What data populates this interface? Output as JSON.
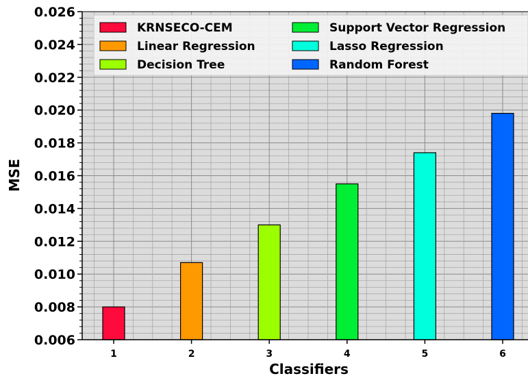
{
  "chart_data": {
    "type": "bar",
    "title": "",
    "xlabel": "Classifiers",
    "ylabel": "MSE",
    "categories": [
      "1",
      "2",
      "3",
      "4",
      "5",
      "6"
    ],
    "series": [
      {
        "name": "KRNSECO-CEM",
        "color": "#ff0a3c",
        "category": "1",
        "value": 0.008
      },
      {
        "name": "Linear Regression",
        "color": "#ff9900",
        "category": "2",
        "value": 0.0107
      },
      {
        "name": "Decision Tree",
        "color": "#9cff00",
        "category": "3",
        "value": 0.013
      },
      {
        "name": "Support Vector Regression",
        "color": "#00ee33",
        "category": "4",
        "value": 0.0155
      },
      {
        "name": "Lasso Regression",
        "color": "#00ffdd",
        "category": "5",
        "value": 0.0174
      },
      {
        "name": "Random Forest",
        "color": "#0066ff",
        "category": "6",
        "value": 0.0198
      }
    ],
    "ylim": [
      0.006,
      0.026
    ],
    "yticks": [
      "0.006",
      "0.008",
      "0.010",
      "0.012",
      "0.014",
      "0.016",
      "0.018",
      "0.020",
      "0.022",
      "0.024",
      "0.026"
    ],
    "grid": true,
    "minor_grid": true,
    "legend_position": "top",
    "legend_columns": 2,
    "background_color": "#dcdcdc"
  }
}
